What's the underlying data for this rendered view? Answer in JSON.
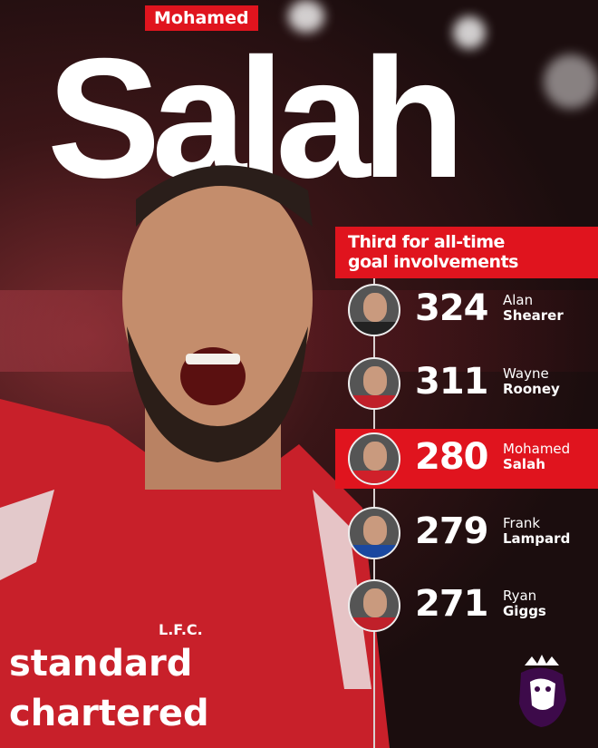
{
  "header": {
    "first_name": "Mohamed",
    "last_name": "Salah"
  },
  "banner": {
    "line1": "Third for all-time",
    "line2": "goal involvements"
  },
  "ranking": [
    {
      "value": "324",
      "first": "Alan",
      "last": "Shearer",
      "highlight": false,
      "shirt": "#222222"
    },
    {
      "value": "311",
      "first": "Wayne",
      "last": "Rooney",
      "highlight": false,
      "shirt": "#c0202a"
    },
    {
      "value": "280",
      "first": "Mohamed",
      "last": "Salah",
      "highlight": true,
      "shirt": "#d0202a"
    },
    {
      "value": "279",
      "first": "Frank",
      "last": "Lampard",
      "highlight": false,
      "shirt": "#1a48a0"
    },
    {
      "value": "271",
      "first": "Ryan",
      "last": "Giggs",
      "highlight": false,
      "shirt": "#c0202a"
    }
  ],
  "shirt_text": {
    "sponsor1": "standard",
    "sponsor2": "chartered",
    "club": "L.F.C."
  },
  "colors": {
    "accent": "#e0141e",
    "background": "#1b0d0e"
  },
  "logo": "premier-league-lion-icon"
}
